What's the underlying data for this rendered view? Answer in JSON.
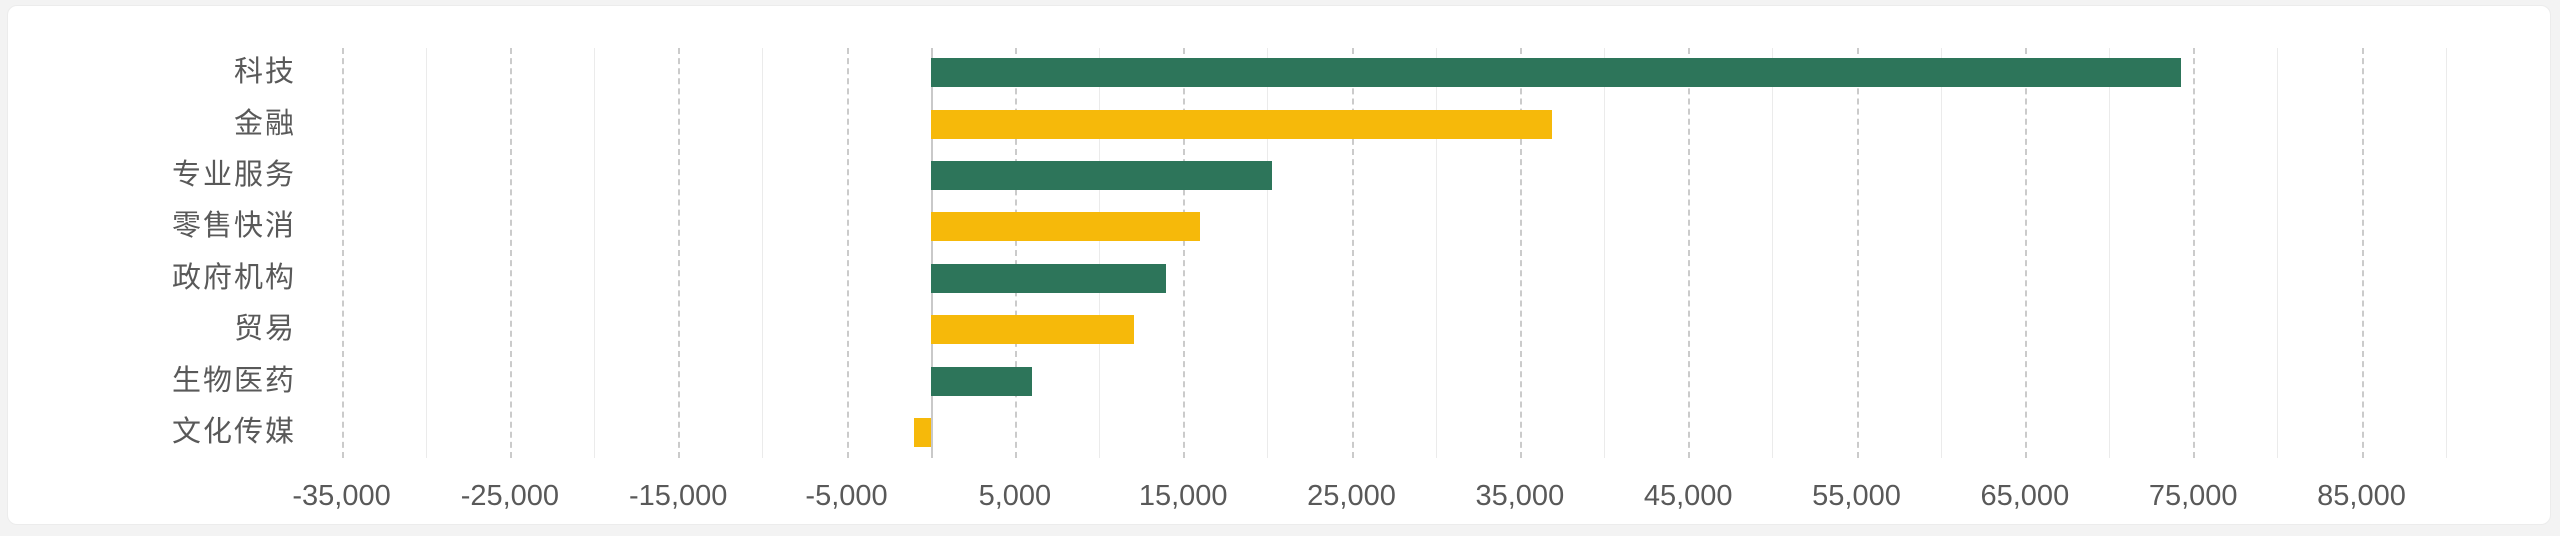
{
  "chart_data": {
    "type": "bar",
    "orientation": "horizontal",
    "title": "",
    "xlabel": "",
    "ylabel": "",
    "categories": [
      "科技",
      "金融",
      "专业服务",
      "零售快消",
      "政府机构",
      "贸易",
      "生物医药",
      "文化传媒"
    ],
    "series": [
      {
        "name": "value",
        "values": [
          74300,
          36900,
          20300,
          16000,
          14000,
          12100,
          6000,
          -1000
        ]
      }
    ],
    "bar_colors": [
      "#2D755A",
      "#F6B90A",
      "#2D755A",
      "#F6B90A",
      "#2D755A",
      "#F6B90A",
      "#2D755A",
      "#F6B90A"
    ],
    "xlim": [
      -40000,
      91000
    ],
    "x_major_ticks": [
      -35000,
      -25000,
      -15000,
      -5000,
      5000,
      15000,
      25000,
      35000,
      45000,
      55000,
      65000,
      75000,
      85000
    ],
    "x_major_tick_labels": [
      "-35,000",
      "-25,000",
      "-15,000",
      "-5,000",
      "5,000",
      "15,000",
      "25,000",
      "35,000",
      "45,000",
      "55,000",
      "65,000",
      "75,000",
      "85,000"
    ],
    "x_minor_gridlines": [
      -30000,
      -20000,
      -10000,
      10000,
      20000,
      30000,
      40000,
      50000,
      60000,
      70000,
      80000,
      90000
    ],
    "grid": true,
    "legend": false,
    "gridline_style": {
      "major": "dashed",
      "minor": "solid"
    },
    "colors": {
      "green_bar": "#2D755A",
      "yellow_bar": "#F6B90A",
      "label_text": "#595959",
      "major_grid": "#CBCBCB",
      "minor_grid": "#EBEBEB",
      "zero_axis": "#C9C9C9",
      "card_background": "#FFFFFF",
      "page_background": "#F3F3F3",
      "card_border": "#ECECEC"
    }
  }
}
